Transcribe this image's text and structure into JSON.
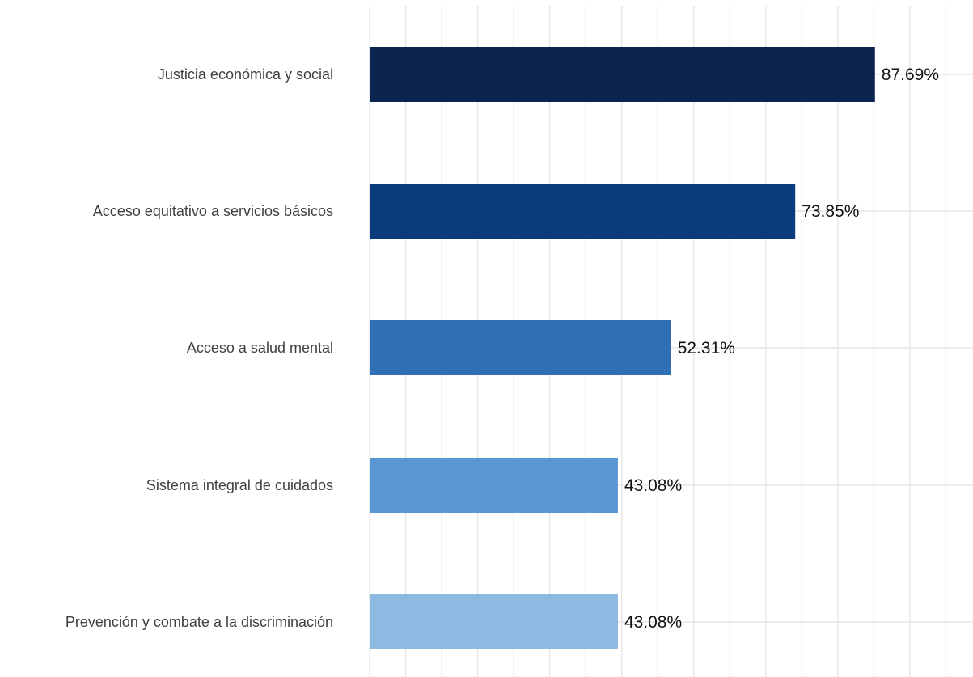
{
  "chart_data": {
    "type": "bar",
    "orientation": "horizontal",
    "categories": [
      "Justicia económica y social",
      "Acceso equitativo a servicios básicos",
      "Acceso a salud mental",
      "Sistema integral de cuidados",
      "Prevención y combate a la discriminación"
    ],
    "values": [
      87.69,
      73.85,
      52.31,
      43.08,
      43.08
    ],
    "value_labels": [
      "87.69%",
      "73.85%",
      "52.31%",
      "43.08%",
      "43.08%"
    ],
    "bar_colors": [
      "#0c2550",
      "#0b3b7c",
      "#2f70b5",
      "#5a97d2",
      "#8db9e2"
    ],
    "xlim": [
      0,
      100
    ],
    "grid": true,
    "legend": "none"
  }
}
